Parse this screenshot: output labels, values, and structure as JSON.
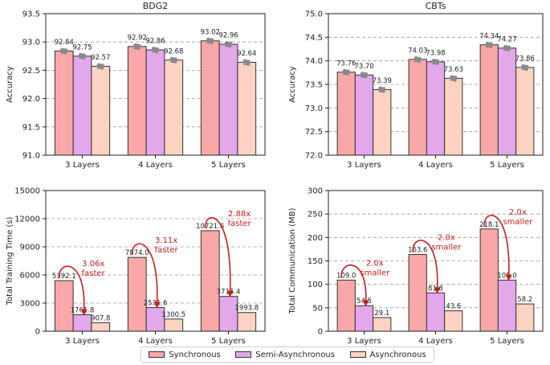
{
  "legend": [
    {
      "name": "Synchronous",
      "color": "#f8a8a8"
    },
    {
      "name": "Semi-Asynchronous",
      "color": "#e2a8ea"
    },
    {
      "name": "Asynchronous",
      "color": "#fcd3c3"
    }
  ],
  "chart_data": [
    {
      "type": "bar",
      "title": "BDG2",
      "xlabel": "",
      "ylabel": "Accuracy",
      "ylim": [
        91.0,
        93.5
      ],
      "yticks": [
        "91.0",
        "91.5",
        "92.0",
        "92.5",
        "93.0",
        "93.5"
      ],
      "categories": [
        "3 Layers",
        "4 Layers",
        "5 Layers"
      ],
      "series": [
        {
          "name": "Synchronous",
          "values": [
            92.84,
            92.92,
            93.02
          ],
          "labels": [
            "92.84",
            "92.92",
            "93.02"
          ]
        },
        {
          "name": "Semi-Asynchronous",
          "values": [
            92.75,
            92.86,
            92.96
          ],
          "labels": [
            "92.75",
            "92.86",
            "92.96"
          ]
        },
        {
          "name": "Asynchronous",
          "values": [
            92.57,
            92.68,
            92.64
          ],
          "labels": [
            "92.57",
            "92.68",
            "92.64"
          ]
        }
      ],
      "error_bars": true,
      "annotations": []
    },
    {
      "type": "bar",
      "title": "CBTs",
      "xlabel": "",
      "ylabel": "Accuracy",
      "ylim": [
        72.0,
        75.0
      ],
      "yticks": [
        "72.0",
        "72.5",
        "73.0",
        "73.5",
        "74.0",
        "74.5",
        "75.0"
      ],
      "categories": [
        "3 Layers",
        "4 Layers",
        "5 Layers"
      ],
      "series": [
        {
          "name": "Synchronous",
          "values": [
            73.76,
            74.03,
            74.34
          ],
          "labels": [
            "73.76",
            "74.03",
            "74.34"
          ]
        },
        {
          "name": "Semi-Asynchronous",
          "values": [
            73.7,
            73.98,
            74.27
          ],
          "labels": [
            "73.70",
            "73.98",
            "74.27"
          ]
        },
        {
          "name": "Asynchronous",
          "values": [
            73.39,
            73.63,
            73.86
          ],
          "labels": [
            "73.39",
            "73.63",
            "73.86"
          ]
        }
      ],
      "error_bars": true,
      "annotations": []
    },
    {
      "type": "bar",
      "title": "",
      "xlabel": "",
      "ylabel": "Total Training Time (s)",
      "ylim": [
        0,
        15000
      ],
      "yticks": [
        "0",
        "3000",
        "6000",
        "9000",
        "12000",
        "15000"
      ],
      "categories": [
        "3 Layers",
        "4 Layers",
        "5 Layers"
      ],
      "series": [
        {
          "name": "Synchronous",
          "values": [
            5392.1,
            7874.0,
            10721.6
          ],
          "labels": [
            "5392.1",
            "7874.0",
            "10721.6"
          ]
        },
        {
          "name": "Semi-Asynchronous",
          "values": [
            1761.8,
            2531.6,
            3715.4
          ],
          "labels": [
            "1761.8",
            "2531.6",
            "3715.4"
          ]
        },
        {
          "name": "Asynchronous",
          "values": [
            907.8,
            1300.5,
            1993.8
          ],
          "labels": [
            "907.8",
            "1300.5",
            "1993.8"
          ]
        }
      ],
      "error_bars": false,
      "annotations": [
        {
          "category": 0,
          "line1": "3.06x",
          "line2": "faster"
        },
        {
          "category": 1,
          "line1": "3.11x",
          "line2": "faster"
        },
        {
          "category": 2,
          "line1": "2.88x",
          "line2": "faster"
        }
      ]
    },
    {
      "type": "bar",
      "title": "",
      "xlabel": "",
      "ylabel": "Total Communication (MB)",
      "ylim": [
        0,
        300
      ],
      "yticks": [
        "0",
        "50",
        "100",
        "150",
        "200",
        "250",
        "300"
      ],
      "categories": [
        "3 Layers",
        "4 Layers",
        "5 Layers"
      ],
      "series": [
        {
          "name": "Synchronous",
          "values": [
            109.0,
            163.6,
            218.1
          ],
          "labels": [
            "109.0",
            "163.6",
            "218.1"
          ]
        },
        {
          "name": "Semi-Asynchronous",
          "values": [
            54.5,
            81.8,
            109.0
          ],
          "labels": [
            "54.5",
            "81.8",
            "109.0"
          ]
        },
        {
          "name": "Asynchronous",
          "values": [
            29.1,
            43.6,
            58.2
          ],
          "labels": [
            "29.1",
            "43.6",
            "58.2"
          ]
        }
      ],
      "error_bars": false,
      "annotations": [
        {
          "category": 0,
          "line1": "2.0x",
          "line2": "smaller"
        },
        {
          "category": 1,
          "line1": "2.0x",
          "line2": "smaller"
        },
        {
          "category": 2,
          "line1": "2.0x",
          "line2": "smaller"
        }
      ]
    }
  ]
}
